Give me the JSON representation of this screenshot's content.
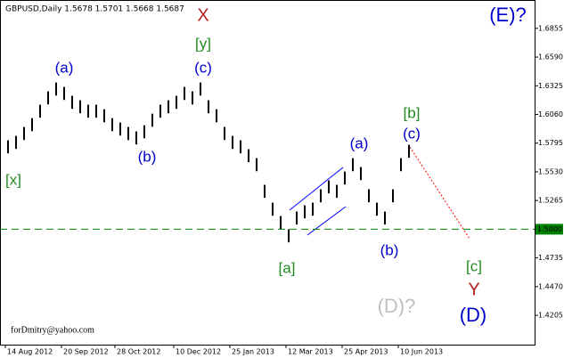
{
  "chart_data": {
    "type": "ohlc",
    "title": "GBPUSD,Daily  1.5678 1.5701 1.5668 1.5687",
    "footer": "forDmitry@yahoo.com",
    "x": [
      0,
      3,
      6,
      9,
      12,
      15,
      18,
      21,
      24,
      27,
      30,
      33,
      36,
      39,
      42,
      45,
      48,
      51,
      54,
      57,
      60,
      63,
      66,
      69,
      72,
      75,
      78,
      81,
      84,
      87,
      90,
      93,
      96,
      99,
      102,
      105,
      108,
      111,
      114,
      117,
      120,
      123,
      126,
      129,
      132,
      135,
      138,
      141,
      144,
      147,
      150,
      153
    ],
    "high": [
      1.5739,
      1.5821,
      1.5862,
      1.5944,
      1.6026,
      1.615,
      1.6273,
      1.6355,
      1.6314,
      1.6232,
      1.6191,
      1.615,
      1.615,
      1.6108,
      1.6026,
      1.5985,
      1.5944,
      1.5903,
      1.596,
      1.6067,
      1.615,
      1.6191,
      1.6232,
      1.6314,
      1.6273,
      1.6355,
      1.6191,
      1.6108,
      1.5944,
      1.5862,
      1.5821,
      1.5739,
      1.5656,
      1.541,
      1.5245,
      1.5122,
      1.4999,
      1.5163,
      1.5221,
      1.5245,
      1.5369,
      1.5451,
      1.541,
      1.5533,
      1.5656,
      1.5574,
      1.5369,
      1.5245,
      1.5163,
      1.5369,
      1.5656,
      1.578
    ],
    "low": [
      1.5619,
      1.5701,
      1.5742,
      1.5824,
      1.5906,
      1.603,
      1.6153,
      1.6235,
      1.6194,
      1.6112,
      1.6071,
      1.603,
      1.603,
      1.5988,
      1.5906,
      1.5865,
      1.5824,
      1.5783,
      1.584,
      1.5947,
      1.603,
      1.6071,
      1.6112,
      1.6194,
      1.6153,
      1.6235,
      1.6071,
      1.5988,
      1.5824,
      1.5742,
      1.5701,
      1.5619,
      1.5536,
      1.529,
      1.5125,
      1.5002,
      1.4879,
      1.5043,
      1.5101,
      1.5125,
      1.5249,
      1.5331,
      1.529,
      1.5413,
      1.5536,
      1.5454,
      1.5249,
      1.5125,
      1.5043,
      1.5249,
      1.5536,
      1.566
    ],
    "color": "#000000",
    "xlim": [
      0,
      200
    ],
    "xticks": [
      {
        "value": 2,
        "label": "14 Aug 2012"
      },
      {
        "value": 23,
        "label": "20 Sep 2012"
      },
      {
        "value": 43,
        "label": "28 Oct 2012"
      },
      {
        "value": 65,
        "label": "10 Dec 2012"
      },
      {
        "value": 86,
        "label": "25 Jan 2013"
      },
      {
        "value": 107,
        "label": "12 Mar 2013"
      },
      {
        "value": 128,
        "label": "25 Apr 2013"
      },
      {
        "value": 149,
        "label": "10 Jun 2013"
      }
    ],
    "ylim": [
      1.3934,
      1.7117
    ],
    "yticks": [
      1.6855,
      {
        "value": 1.659,
        "label": "1.6590"
      },
      1.6325,
      {
        "value": 1.606,
        "label": "1.6060"
      },
      1.5795,
      {
        "value": 1.553,
        "label": "1.5530"
      },
      1.5265,
      1.4735,
      {
        "value": 1.447,
        "label": "1.4470"
      },
      1.4205
    ],
    "hline": {
      "value": 1.5,
      "label": "1.5000",
      "color": "#008000"
    },
    "annotations": [
      {
        "text": "X",
        "color": "#b22222"
      },
      {
        "text": "[y]",
        "color": "#228b22"
      },
      {
        "text": "(c)",
        "color": "#0000cd"
      },
      {
        "text": "(a)",
        "color": "#0000cd"
      },
      {
        "text": "(b)",
        "color": "#0000cd"
      },
      {
        "text": "[x]",
        "color": "#228b22"
      },
      {
        "text": "(a)",
        "color": "#0000cd"
      },
      {
        "text": "[b]",
        "color": "#228b22"
      },
      {
        "text": "(c)",
        "color": "#0000cd"
      },
      {
        "text": "[a]",
        "color": "#228b22"
      },
      {
        "text": "(b)",
        "color": "#0000cd"
      },
      {
        "text": "[c]",
        "color": "#228b22"
      },
      {
        "text": "Y",
        "color": "#b22222"
      },
      {
        "text": "(D)?",
        "color": "#c0c0c0"
      },
      {
        "text": "(D)",
        "color": "#0000cd"
      },
      {
        "text": "(E)?",
        "color": "#0000cd"
      }
    ]
  }
}
